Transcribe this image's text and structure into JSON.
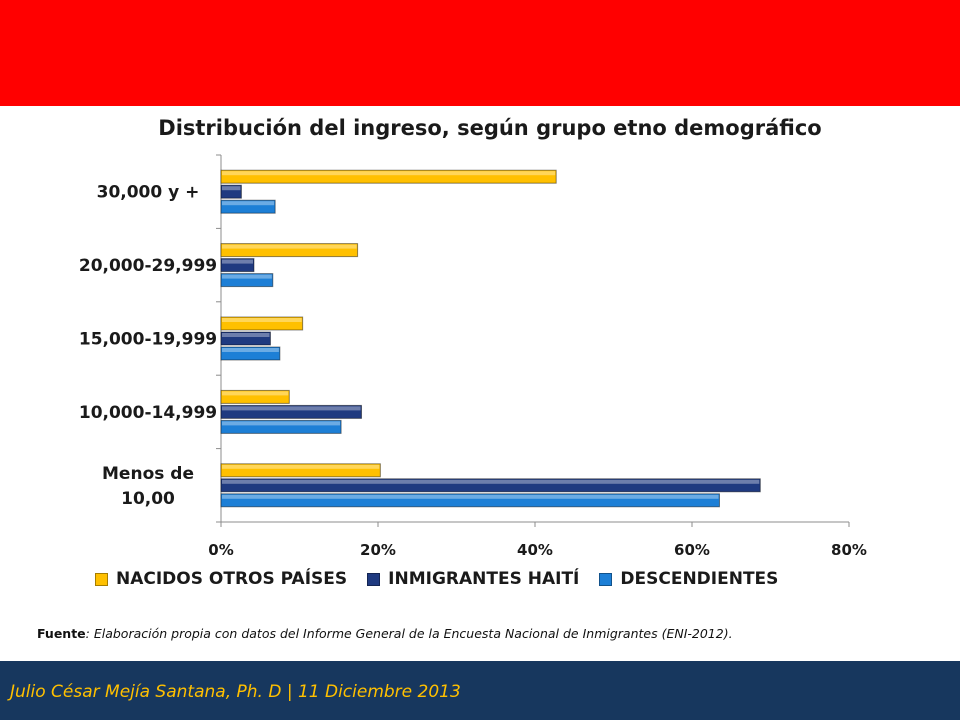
{
  "header": {
    "band_color": "#ff0000"
  },
  "chart_data": {
    "type": "bar",
    "orientation": "horizontal",
    "title": "Distribución del ingreso, según grupo etno demográfico",
    "categories": [
      "Menos de 10,00",
      "10,000-14,999",
      "15,000-19,999",
      "20,000-29,999",
      "30,000 y +"
    ],
    "category_label_lines": [
      [
        "Menos de",
        "10,00"
      ],
      [
        "10,000-14,999"
      ],
      [
        "15,000-19,999"
      ],
      [
        "20,000-29,999"
      ],
      [
        "30,000 y +"
      ]
    ],
    "series": [
      {
        "name": "NACIDOS OTROS PAÍSES",
        "color": "#ffc000",
        "values": [
          20.3,
          8.7,
          10.4,
          17.4,
          42.7
        ]
      },
      {
        "name": "INMIGRANTES HAITÍ",
        "color": "#1f3a80",
        "values": [
          68.7,
          17.9,
          6.3,
          4.2,
          2.6
        ]
      },
      {
        "name": "DESCENDIENTES",
        "color": "#1d7fd6",
        "values": [
          63.5,
          15.3,
          7.5,
          6.6,
          6.9
        ]
      }
    ],
    "xlim": [
      0,
      80
    ],
    "x_ticks": [
      "0%",
      "20%",
      "40%",
      "60%",
      "80%"
    ],
    "x_tick_values": [
      0,
      20,
      40,
      60,
      80
    ],
    "grid": false,
    "legend_position": "bottom"
  },
  "source": {
    "label": "Fuente",
    "text": ": Elaboración propia con datos del Informe General de la Encuesta Nacional de Inmigrantes (ENI-2012)."
  },
  "footer": {
    "text": "Julio César Mejía Santana, Ph. D  | 11 Diciembre 2013",
    "band_color": "#17375e",
    "text_color": "#ffc000"
  }
}
